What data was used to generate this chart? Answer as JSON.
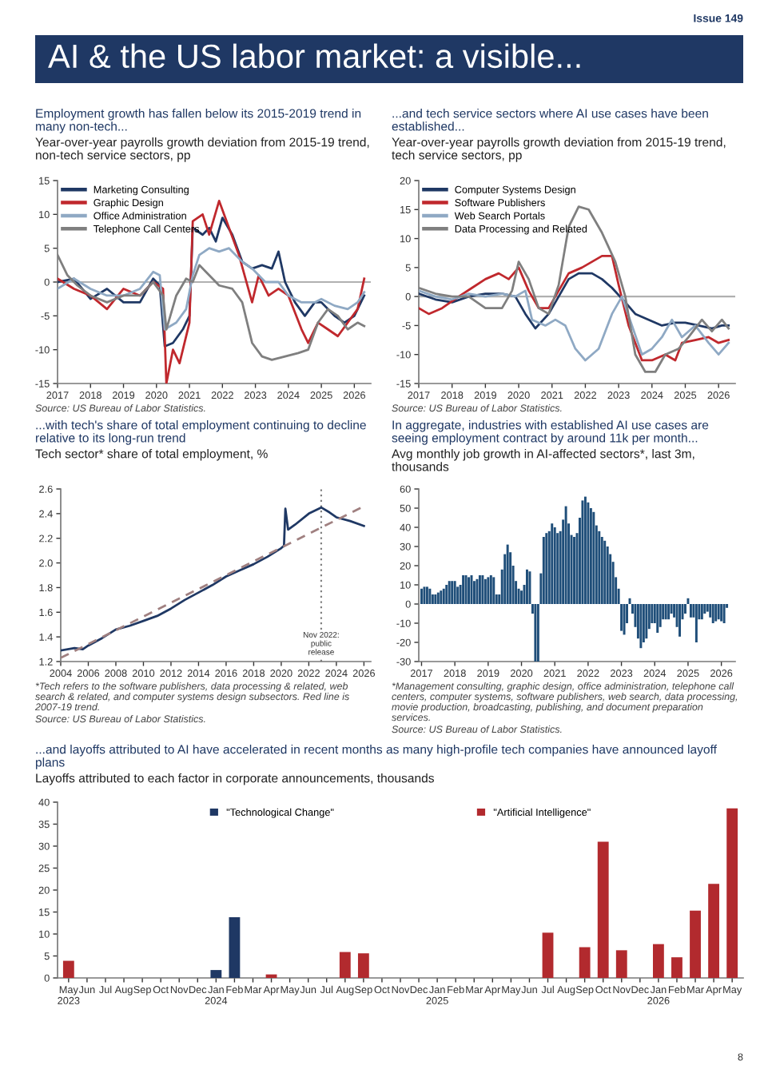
{
  "chart_data": [
    {
      "type": "line",
      "title": "Employment growth has fallen below its 2015-2019 trend in many non-tech...",
      "subtitle": "Year-over-year payrolls growth deviation from 2015-19 trend, non-tech service sectors, pp",
      "xlim": [
        2017,
        2026.5
      ],
      "xticks": [
        2017,
        2018,
        2019,
        2020,
        2021,
        2022,
        2023,
        2024,
        2025,
        2026
      ],
      "ylim": [
        -15,
        15
      ],
      "yticks": [
        -15,
        -10,
        -5,
        0,
        5,
        10,
        15
      ],
      "legend": "top left",
      "ref_lines": [
        {
          "axis": "y",
          "value": 0,
          "color": "#b0b0b0"
        }
      ],
      "annotations": [
        "AI & the US labor market: a visible...",
        "Issue 149",
        "Source: US Bureau of Labor Statistics."
      ],
      "series": [
        {
          "name": "Marketing Consulting",
          "color": "#1f3864",
          "x": [
            2017,
            2017.5,
            2018,
            2018.5,
            2019,
            2019.5,
            2019.9,
            2020.1,
            2020.25,
            2020.5,
            2020.8,
            2021.0,
            2021.1,
            2021.4,
            2021.6,
            2021.8,
            2022.0,
            2022.3,
            2022.6,
            2022.9,
            2023.2,
            2023.5,
            2023.7,
            2023.9,
            2024.2,
            2024.5,
            2024.8,
            2025.0,
            2025.4,
            2025.7,
            2026.0,
            2026.3
          ],
          "values": [
            0,
            0.5,
            -2.5,
            -1,
            -3,
            -3,
            0.5,
            -0.5,
            -9.5,
            -9,
            -7,
            -5,
            8,
            7,
            8,
            6,
            9.5,
            7,
            3,
            2,
            2.5,
            2,
            4.5,
            0,
            -3,
            -5,
            -3,
            -3,
            -5,
            -6,
            -5,
            -2
          ]
        },
        {
          "name": "Graphic Design",
          "color": "#c0282d",
          "x": [
            2017,
            2017.5,
            2018,
            2018.5,
            2019,
            2019.5,
            2019.9,
            2020.2,
            2020.3,
            2020.5,
            2020.7,
            2021.0,
            2021.1,
            2021.4,
            2021.6,
            2021.9,
            2022.2,
            2022.5,
            2022.9,
            2023.1,
            2023.4,
            2023.7,
            2024.0,
            2024.4,
            2024.6,
            2024.9,
            2025.2,
            2025.5,
            2025.8,
            2026.1,
            2026.3
          ],
          "values": [
            0.5,
            -1,
            -2,
            -4,
            -1,
            -2,
            0,
            -1,
            -15,
            -10,
            -12,
            -6,
            9,
            10,
            7,
            12,
            8,
            4,
            -3,
            1,
            -2,
            -1,
            -2,
            -7,
            -9,
            -6,
            -7,
            -8,
            -6,
            -4,
            0.5
          ]
        },
        {
          "name": "Office Administration",
          "color": "#8fa9c4",
          "x": [
            2017,
            2017.5,
            2018,
            2018.5,
            2019,
            2019.5,
            2019.9,
            2020.1,
            2020.25,
            2020.6,
            2020.9,
            2021.1,
            2021.3,
            2021.6,
            2021.9,
            2022.2,
            2022.6,
            2022.9,
            2023.3,
            2023.7,
            2024.0,
            2024.4,
            2024.8,
            2025.0,
            2025.4,
            2025.8,
            2026.1,
            2026.3
          ],
          "values": [
            -1,
            0.5,
            -1,
            -2,
            -2,
            -1,
            1.5,
            1,
            -7,
            -6,
            -4,
            1,
            4,
            5,
            4.5,
            5,
            3,
            2,
            0,
            0,
            -2,
            -3,
            -3,
            -2.5,
            -3.5,
            -4,
            -3,
            -1.5
          ]
        },
        {
          "name": "Telephone Call Centers",
          "color": "#7f7f7f",
          "x": [
            2017,
            2017.3,
            2017.6,
            2018.0,
            2018.5,
            2019.0,
            2019.5,
            2019.9,
            2020.2,
            2020.3,
            2020.6,
            2020.9,
            2021.1,
            2021.3,
            2021.6,
            2021.9,
            2022.3,
            2022.6,
            2022.9,
            2023.2,
            2023.5,
            2023.9,
            2024.3,
            2024.6,
            2024.9,
            2025.2,
            2025.5,
            2025.8,
            2026.1,
            2026.3
          ],
          "values": [
            4,
            1,
            -0.5,
            -2,
            -3,
            -2,
            -2,
            0,
            -2,
            -7,
            -2,
            0.5,
            0,
            2.5,
            1,
            -0.5,
            -1,
            -3,
            -9,
            -11,
            -11.5,
            -11,
            -10.5,
            -10,
            -6,
            -4,
            -5,
            -7,
            -6,
            -6.5
          ]
        }
      ]
    },
    {
      "type": "line",
      "title": "...and tech service sectors where AI use cases have been established...",
      "subtitle": "Year-over-year payrolls growth deviation from 2015-19 trend, tech service sectors, pp",
      "xlim": [
        2017,
        2026.5
      ],
      "xticks": [
        2017,
        2018,
        2019,
        2020,
        2021,
        2022,
        2023,
        2024,
        2025,
        2026
      ],
      "ylim": [
        -15,
        20
      ],
      "yticks": [
        -15,
        -10,
        -5,
        0,
        5,
        10,
        15,
        20
      ],
      "legend": "top left",
      "ref_lines": [
        {
          "axis": "y",
          "value": 0,
          "color": "#b0b0b0"
        }
      ],
      "annotations": [
        "Source: US Bureau of Labor Statistics."
      ],
      "series": [
        {
          "name": "Computer Systems Design",
          "color": "#1f3864",
          "x": [
            2017,
            2017.5,
            2018,
            2018.5,
            2019,
            2019.5,
            2019.9,
            2020.2,
            2020.5,
            2020.9,
            2021.2,
            2021.5,
            2021.8,
            2022.2,
            2022.5,
            2022.8,
            2023.2,
            2023.5,
            2023.9,
            2024.3,
            2024.7,
            2025.0,
            2025.4,
            2025.8,
            2026.1,
            2026.3
          ],
          "values": [
            0.5,
            -0.5,
            -1,
            0,
            0.5,
            0.5,
            0,
            -3,
            -5.5,
            -3,
            0,
            3,
            4,
            4,
            3,
            1.5,
            -1,
            -3,
            -4,
            -5,
            -4.5,
            -4.5,
            -5,
            -5.5,
            -5,
            -5
          ]
        },
        {
          "name": "Software Publishers",
          "color": "#c0282d",
          "x": [
            2017,
            2017.3,
            2017.7,
            2018.2,
            2018.6,
            2019.0,
            2019.4,
            2019.7,
            2020.0,
            2020.3,
            2020.6,
            2020.9,
            2021.2,
            2021.5,
            2021.9,
            2022.2,
            2022.5,
            2022.8,
            2023.0,
            2023.3,
            2023.7,
            2024.0,
            2024.4,
            2024.7,
            2024.9,
            2025.3,
            2025.7,
            2026.0,
            2026.3
          ],
          "values": [
            -2,
            -3,
            -2,
            0,
            1.5,
            3,
            4,
            3,
            5,
            1,
            -2,
            -2,
            1,
            4,
            5,
            6,
            7,
            7,
            2,
            -5,
            -11,
            -11,
            -10,
            -11,
            -8,
            -7.5,
            -7,
            -8,
            -7.5
          ]
        },
        {
          "name": "Web Search Portals",
          "color": "#8fa9c4",
          "x": [
            2017,
            2017.5,
            2018,
            2018.5,
            2019,
            2019.5,
            2019.9,
            2020.2,
            2020.4,
            2020.8,
            2021.1,
            2021.4,
            2021.7,
            2022.0,
            2022.4,
            2022.8,
            2023.1,
            2023.4,
            2023.7,
            2024.0,
            2024.3,
            2024.6,
            2024.9,
            2025.3,
            2025.7,
            2026.0,
            2026.3
          ],
          "values": [
            1,
            0,
            -0.5,
            0.5,
            0,
            0.5,
            0,
            1,
            -4,
            -5,
            -4,
            -5,
            -9,
            -11,
            -9,
            -3,
            0,
            -5,
            -10,
            -9,
            -7,
            -4,
            -7,
            -5,
            -8,
            -10,
            -8
          ]
        },
        {
          "name": "Data Processing and Related",
          "color": "#7f7f7f",
          "x": [
            2017,
            2017.5,
            2018,
            2018.5,
            2019,
            2019.5,
            2019.8,
            2020.0,
            2020.3,
            2020.6,
            2020.9,
            2021.2,
            2021.5,
            2021.8,
            2022.1,
            2022.5,
            2022.9,
            2023.2,
            2023.5,
            2023.8,
            2024.1,
            2024.4,
            2024.8,
            2025.1,
            2025.5,
            2025.8,
            2026.1,
            2026.3
          ],
          "values": [
            1.5,
            0.5,
            0,
            0,
            -2,
            -2,
            1,
            6,
            3,
            -2,
            -3,
            2,
            12,
            15.5,
            15,
            11,
            6,
            0,
            -10,
            -13,
            -13,
            -10,
            -9,
            -7,
            -4,
            -6,
            -4,
            -5.5
          ]
        }
      ]
    },
    {
      "type": "line",
      "title": "...with tech's share of total employment continuing to decline relative to its long-run trend",
      "subtitle": "Tech sector* share of total employment, %",
      "xlim": [
        2004,
        2026.5
      ],
      "xticks": [
        2004,
        2006,
        2008,
        2010,
        2012,
        2014,
        2016,
        2018,
        2020,
        2022,
        2024,
        2026
      ],
      "ylim": [
        1.2,
        2.6
      ],
      "yticks": [
        {
          "value": 1.2,
          "label": "1.2"
        },
        {
          "value": 1.4,
          "label": "1.4"
        },
        {
          "value": 1.6,
          "label": "1.6"
        },
        {
          "value": 1.8,
          "label": "1.8"
        },
        {
          "value": 2.0,
          "label": "2.0"
        },
        {
          "value": 2.2,
          "label": "2.2"
        },
        {
          "value": 2.4,
          "label": "2.4"
        },
        {
          "value": 2.6,
          "label": "2.6"
        }
      ],
      "ref_lines": [
        {
          "axis": "x",
          "value": 2022.9,
          "label": "Nov 2022: public release",
          "color": "#808080",
          "line_style": "dotted"
        }
      ],
      "annotations": [
        "*Tech refers to the software publishers, data processing & related, web search & related, and computer systems design subsectors. Red line is 2007-19 trend.",
        "Source: US Bureau of Labor Statistics."
      ],
      "series": [
        {
          "color": "#1f3864",
          "x": [
            2004,
            2005,
            2005.6,
            2006,
            2007,
            2008,
            2009,
            2010,
            2011,
            2012,
            2013,
            2014,
            2015,
            2016,
            2017,
            2018,
            2019,
            2020,
            2020.2,
            2020.3,
            2020.5,
            2021,
            2022,
            2022.9,
            2023.5,
            2024,
            2025,
            2026
          ],
          "values": [
            1.29,
            1.31,
            1.3,
            1.33,
            1.39,
            1.46,
            1.49,
            1.53,
            1.57,
            1.63,
            1.7,
            1.76,
            1.82,
            1.89,
            1.94,
            1.99,
            2.05,
            2.12,
            2.14,
            2.44,
            2.27,
            2.31,
            2.4,
            2.45,
            2.41,
            2.37,
            2.34,
            2.3
          ]
        },
        {
          "color": "#a08080",
          "line_style": "dashed",
          "x": [
            2004,
            2026
          ],
          "values": [
            1.23,
            2.46
          ]
        }
      ]
    },
    {
      "type": "bar",
      "title": "In aggregate, industries with established AI use cases are seeing employment contract by around 11k per month...",
      "subtitle": "Avg monthly job growth in AI-affected sectors*, last 3m, thousands",
      "xlim": [
        "2016-12",
        "2026-06"
      ],
      "xticks": [
        "2017",
        "2018",
        "2019",
        "2020",
        "2021",
        "2022",
        "2023",
        "2024",
        "2025",
        "2026"
      ],
      "ylim": [
        -30,
        60
      ],
      "yticks": [
        -30,
        -20,
        -10,
        0,
        10,
        20,
        30,
        40,
        50,
        60
      ],
      "annotations": [
        "*Management consulting, graphic design, office administration, telephone call centers, computer systems, software publishers, web search, data processing, movie production, broadcasting, publishing, and document preparation services.",
        "Source: US Bureau of Labor Statistics."
      ],
      "x": [
        "2017-01",
        "2017-02",
        "2017-03",
        "2017-04",
        "2017-05",
        "2017-06",
        "2017-07",
        "2017-08",
        "2017-09",
        "2017-10",
        "2017-11",
        "2017-12",
        "2018-01",
        "2018-02",
        "2018-03",
        "2018-04",
        "2018-05",
        "2018-06",
        "2018-07",
        "2018-08",
        "2018-09",
        "2018-10",
        "2018-11",
        "2018-12",
        "2019-01",
        "2019-02",
        "2019-03",
        "2019-04",
        "2019-05",
        "2019-06",
        "2019-07",
        "2019-08",
        "2019-09",
        "2019-10",
        "2019-11",
        "2019-12",
        "2020-01",
        "2020-02",
        "2020-03",
        "2020-04",
        "2020-05",
        "2020-06",
        "2020-07",
        "2020-08",
        "2020-09",
        "2020-10",
        "2020-11",
        "2020-12",
        "2021-01",
        "2021-02",
        "2021-03",
        "2021-04",
        "2021-05",
        "2021-06",
        "2021-07",
        "2021-08",
        "2021-09",
        "2021-10",
        "2021-11",
        "2021-12",
        "2022-01",
        "2022-02",
        "2022-03",
        "2022-04",
        "2022-05",
        "2022-06",
        "2022-07",
        "2022-08",
        "2022-09",
        "2022-10",
        "2022-11",
        "2022-12",
        "2023-01",
        "2023-02",
        "2023-03",
        "2023-04",
        "2023-05",
        "2023-06",
        "2023-07",
        "2023-08",
        "2023-09",
        "2023-10",
        "2023-11",
        "2023-12",
        "2024-01",
        "2024-02",
        "2024-03",
        "2024-04",
        "2024-05",
        "2024-06",
        "2024-07",
        "2024-08",
        "2024-09",
        "2024-10",
        "2024-11",
        "2024-12",
        "2025-01",
        "2025-02",
        "2025-03",
        "2025-04",
        "2025-05",
        "2025-06",
        "2025-07",
        "2025-08",
        "2025-09",
        "2025-10",
        "2025-11",
        "2025-12",
        "2026-01",
        "2026-02",
        "2026-03"
      ],
      "series": [
        {
          "color": "#1f4e79",
          "values": [
            8,
            9,
            9,
            8,
            5,
            5,
            6,
            7,
            8,
            10,
            12,
            12,
            12,
            9,
            10,
            15,
            15,
            14,
            15,
            12,
            13,
            15,
            15,
            13,
            14,
            15,
            14,
            5,
            5,
            18,
            26,
            31,
            27,
            20,
            12,
            8,
            7,
            10,
            18,
            17,
            -5,
            -30,
            -30,
            16,
            35,
            37,
            38,
            42,
            40,
            37,
            38,
            44,
            51,
            42,
            36,
            35,
            37,
            45,
            54,
            56,
            53,
            50,
            48,
            41,
            38,
            35,
            33,
            30,
            26,
            22,
            14,
            8,
            -14,
            -16,
            -10,
            3,
            -5,
            -12,
            -18,
            -23,
            -20,
            -18,
            -13,
            -10,
            -10,
            -15,
            -12,
            -8,
            -8,
            -8,
            -5,
            -7,
            -12,
            -17,
            -8,
            -5,
            3,
            -7,
            -7,
            -20,
            -8,
            -8,
            -5,
            -4,
            -7,
            -10,
            -9,
            -8,
            -9,
            -10,
            -2
          ]
        }
      ]
    },
    {
      "type": "bar",
      "title": "...and layoffs attributed to AI have accelerated in recent months as many high-profile tech companies have announced layoff plans",
      "subtitle": "Layoffs attributed to each factor in corporate announcements, thousands",
      "ylim": [
        0,
        40
      ],
      "yticks": [
        0,
        5,
        10,
        15,
        20,
        25,
        30,
        35,
        40
      ],
      "legend": "top",
      "annotations": [
        "8"
      ],
      "categories": [
        "May\n2023",
        "Jun",
        "Jul",
        "Aug",
        "Sep",
        "Oct",
        "Nov",
        "Dec",
        "Jan\n2024",
        "Feb",
        "Mar",
        "Apr",
        "May",
        "Jun",
        "Jul",
        "Aug",
        "Sep",
        "Oct",
        "Nov",
        "Dec",
        "Jan\n2025",
        "Feb",
        "Mar",
        "Apr",
        "May",
        "Jun",
        "Jul",
        "Aug",
        "Sep",
        "Oct",
        "Nov",
        "Dec",
        "Jan\n2026",
        "Feb",
        "Mar",
        "Apr",
        "May"
      ],
      "series": [
        {
          "name": "\"Technological Change\"",
          "color": "#1f3864",
          "values": [
            null,
            null,
            null,
            null,
            null,
            null,
            null,
            null,
            1.8,
            13.8,
            null,
            null,
            null,
            null,
            null,
            null,
            null,
            null,
            null,
            null,
            null,
            null,
            null,
            null,
            null,
            null,
            null,
            null,
            null,
            null,
            null,
            null,
            null,
            null,
            null,
            null,
            null
          ]
        },
        {
          "name": "\"Artificial Intelligence\"",
          "color": "#b22a2e",
          "values": [
            3.9,
            null,
            null,
            null,
            null,
            null,
            null,
            null,
            null,
            null,
            null,
            0.8,
            null,
            null,
            null,
            5.9,
            5.6,
            null,
            null,
            null,
            null,
            null,
            null,
            null,
            null,
            null,
            10.3,
            null,
            7.0,
            31.0,
            6.3,
            null,
            7.7,
            4.7,
            15.3,
            21.4,
            38.6
          ]
        }
      ]
    }
  ]
}
